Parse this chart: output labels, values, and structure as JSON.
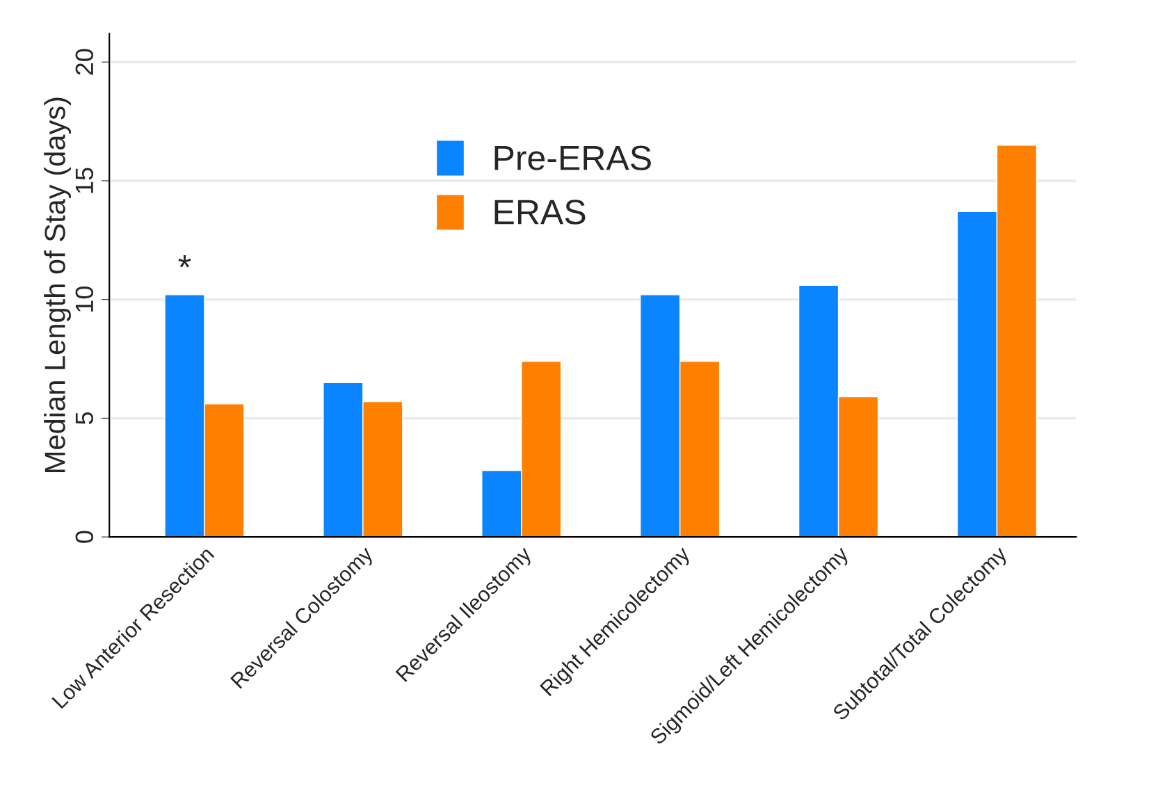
{
  "chart_data": {
    "type": "bar",
    "ylabel": "Median Length of Stay (days)",
    "categories": [
      "Low Anterior Resection",
      "Reversal Colostomy",
      "Reversal Ileostomy",
      "Right Hemicolectomy",
      "Sigmoid/Left Hemicolectomy",
      "Subtotal/Total Colectomy"
    ],
    "series": [
      {
        "name": "Pre-ERAS",
        "color": "#0a84ff",
        "values": [
          10.2,
          6.5,
          2.8,
          10.2,
          10.6,
          13.7
        ]
      },
      {
        "name": "ERAS",
        "color": "#ff8000",
        "values": [
          5.6,
          5.7,
          7.4,
          7.4,
          5.9,
          16.5
        ]
      }
    ],
    "ylim": [
      0,
      21.2
    ],
    "yticks": [
      0,
      5,
      10,
      15,
      20
    ],
    "grid": "y",
    "legend": "top",
    "annotations": [
      "*"
    ]
  }
}
